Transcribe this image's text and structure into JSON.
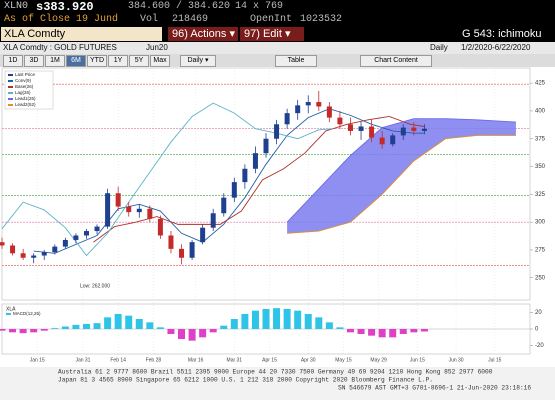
{
  "header": {
    "ticker": "XLN0",
    "last": "s383.920",
    "bid_ask": "384.600 / 384.620",
    "size": "14 x 769",
    "as_of": "As of Close 19 Jund",
    "volume_label": "Vol",
    "volume": "218469",
    "open_int_label": "OpenInt",
    "open_int": "1023532"
  },
  "command": {
    "security": "XLA Comdty",
    "actions": "96) Actions ▾",
    "edit": "97) Edit ▾",
    "function": "G 543: ichimoku"
  },
  "title_bar": {
    "name": "XLA Comdty : GOLD FUTURES",
    "contract": "Jun20",
    "period": "Daily",
    "range": "1/2/2020-6/22/2020"
  },
  "toolbar": {
    "ranges": [
      "1D",
      "3D",
      "1M",
      "6M",
      "YTD",
      "1Y",
      "5Y",
      "Max"
    ],
    "selected": 3,
    "frequency": "Daily ▾",
    "table": "Table",
    "chart_content": "Chart Content"
  },
  "chart_data": [
    {
      "type": "candlestick",
      "name": "Last Price",
      "up_color": "#1f3f8f",
      "down_color": "#c42a2a",
      "x": [
        0,
        3,
        6,
        9,
        12,
        15,
        18,
        21,
        24,
        27,
        30,
        33,
        36,
        39,
        42,
        45,
        48,
        51,
        54,
        57,
        60,
        63,
        66,
        69,
        72,
        75,
        78,
        81,
        84,
        87,
        90,
        93,
        96,
        99,
        102,
        105,
        108,
        111,
        114,
        117,
        120
      ],
      "open": [
        282,
        279,
        272,
        268,
        270,
        273,
        278,
        284,
        288,
        292,
        296,
        326,
        314,
        309,
        312,
        303,
        288,
        276,
        268,
        282,
        295,
        308,
        322,
        336,
        348,
        362,
        375,
        388,
        398,
        405,
        408,
        404,
        394,
        388,
        382,
        386,
        376,
        370,
        378,
        385,
        382
      ],
      "high": [
        286,
        281,
        276,
        272,
        275,
        280,
        286,
        290,
        294,
        298,
        330,
        332,
        318,
        316,
        315,
        306,
        292,
        280,
        284,
        298,
        312,
        326,
        340,
        352,
        368,
        380,
        392,
        402,
        410,
        414,
        418,
        408,
        400,
        394,
        390,
        392,
        382,
        380,
        388,
        390,
        388
      ],
      "low": [
        276,
        270,
        266,
        263,
        266,
        271,
        276,
        281,
        285,
        289,
        294,
        310,
        305,
        304,
        300,
        285,
        272,
        262,
        266,
        280,
        292,
        305,
        318,
        330,
        344,
        358,
        370,
        384,
        392,
        398,
        400,
        390,
        384,
        378,
        374,
        372,
        366,
        368,
        374,
        378,
        379
      ],
      "close": [
        279,
        272,
        268,
        270,
        273,
        278,
        284,
        288,
        292,
        296,
        326,
        314,
        309,
        312,
        303,
        288,
        276,
        268,
        282,
        295,
        308,
        322,
        336,
        348,
        362,
        375,
        388,
        398,
        405,
        408,
        404,
        394,
        388,
        382,
        386,
        376,
        370,
        378,
        385,
        382,
        384
      ],
      "series": [
        {
          "name": "Conv(9)",
          "color": "#1f5fa8",
          "x": [
            9,
            15,
            21,
            27,
            33,
            39,
            45,
            51,
            57,
            63,
            69,
            75,
            81,
            87,
            93,
            99,
            105,
            111,
            117,
            120
          ],
          "values": [
            274,
            272,
            280,
            288,
            312,
            316,
            310,
            290,
            282,
            298,
            322,
            352,
            378,
            394,
            402,
            396,
            388,
            382,
            380,
            380
          ]
        },
        {
          "name": "Base(26)",
          "color": "#b03030",
          "x": [
            26,
            32,
            38,
            44,
            50,
            56,
            62,
            68,
            74,
            80,
            86,
            92,
            98,
            104,
            110,
            116,
            120
          ],
          "values": [
            282,
            296,
            300,
            305,
            298,
            298,
            298,
            310,
            338,
            348,
            362,
            382,
            388,
            392,
            395,
            388,
            386
          ]
        },
        {
          "name": "Lag(26)",
          "color": "#5ab4c8",
          "x": [
            0,
            6,
            12,
            18,
            24,
            30,
            36,
            42,
            48,
            54,
            60,
            66,
            72,
            78,
            84,
            90,
            94
          ],
          "values": [
            294,
            318,
            311,
            295,
            270,
            290,
            318,
            345,
            372,
            395,
            407,
            398,
            384,
            380,
            375,
            383,
            384
          ]
        },
        {
          "name": "Lead1(26)",
          "color": "#6a6ae6",
          "fill": "#7b7bef",
          "x": [
            81,
            90,
            99,
            108,
            117,
            126,
            135,
            146
          ],
          "values": [
            300,
            330,
            360,
            385,
            393,
            393,
            392,
            390
          ]
        },
        {
          "name": "Lead2(52)",
          "color": "#e0902a",
          "fill": "#7b7bef",
          "x": [
            81,
            90,
            99,
            108,
            117,
            126,
            135,
            146
          ],
          "values": [
            290,
            292,
            300,
            325,
            355,
            375,
            378,
            378
          ]
        }
      ],
      "levels": [
        {
          "value": 424,
          "color": "#e05050"
        },
        {
          "value": 384,
          "color": "#e070a0"
        },
        {
          "value": 361,
          "color": "#40a040"
        },
        {
          "value": 324,
          "color": "#40a040"
        },
        {
          "value": 300,
          "color": "#e070a0"
        },
        {
          "value": 261,
          "color": "#e05050"
        }
      ],
      "low_label": "Low: 262.000",
      "xlim": [
        0,
        150
      ],
      "ylim": [
        230,
        435
      ],
      "yticks": [
        250,
        275,
        300,
        325,
        350,
        375,
        400,
        425
      ]
    },
    {
      "type": "bar",
      "title": "XLA",
      "name": "MACD(12,26)",
      "pos_color": "#2ec4e8",
      "neg_color": "#e040c8",
      "x": [
        0,
        3,
        6,
        9,
        12,
        15,
        18,
        21,
        24,
        27,
        30,
        33,
        36,
        39,
        42,
        45,
        48,
        51,
        54,
        57,
        60,
        63,
        66,
        69,
        72,
        75,
        78,
        81,
        84,
        87,
        90,
        93,
        96,
        99,
        102,
        105,
        108,
        111,
        114,
        117,
        120
      ],
      "values": [
        -2,
        -4,
        -5,
        -4,
        -2,
        1,
        3,
        5,
        6,
        7,
        14,
        18,
        16,
        12,
        8,
        2,
        -6,
        -12,
        -14,
        -10,
        -4,
        4,
        12,
        18,
        22,
        24,
        25,
        24,
        22,
        18,
        14,
        8,
        2,
        -4,
        -6,
        -8,
        -10,
        -10,
        -6,
        -4,
        -3
      ],
      "xlim": [
        0,
        150
      ],
      "ylim": [
        -30,
        30
      ],
      "yticks": [
        -20,
        0,
        20
      ],
      "xticks": [
        {
          "value": 10,
          "label": "Jan 15"
        },
        {
          "value": 23,
          "label": "Jan 31"
        },
        {
          "value": 33,
          "label": "Feb 14"
        },
        {
          "value": 43,
          "label": "Feb 28"
        },
        {
          "value": 55,
          "label": "Mar 16"
        },
        {
          "value": 66,
          "label": "Mar 31"
        },
        {
          "value": 76,
          "label": "Apr 15"
        },
        {
          "value": 87,
          "label": "Apr 30"
        },
        {
          "value": 97,
          "label": "May 15"
        },
        {
          "value": 107,
          "label": "May 29"
        },
        {
          "value": 118,
          "label": "Jun 15"
        },
        {
          "value": 129,
          "label": "Jun 30"
        },
        {
          "value": 140,
          "label": "Jul 15"
        }
      ]
    }
  ],
  "footer": {
    "lines": [
      "Australia 61 2 9777 8600 Brazil 5511 2395 9000 Europe 44 20 7330 7500 Germany 49 69 9204 1210 Hong Kong 852 2977 6000",
      "Japan 81 3 4565 8900        Singapore 65 6212 1000        U.S. 1 212 318 2000        Copyright 2020 Bloomberg Finance L.P.",
      "SN 546679 AST  GMT+3 G701-8696-1 21-Jun-2020 23:18:16"
    ]
  }
}
